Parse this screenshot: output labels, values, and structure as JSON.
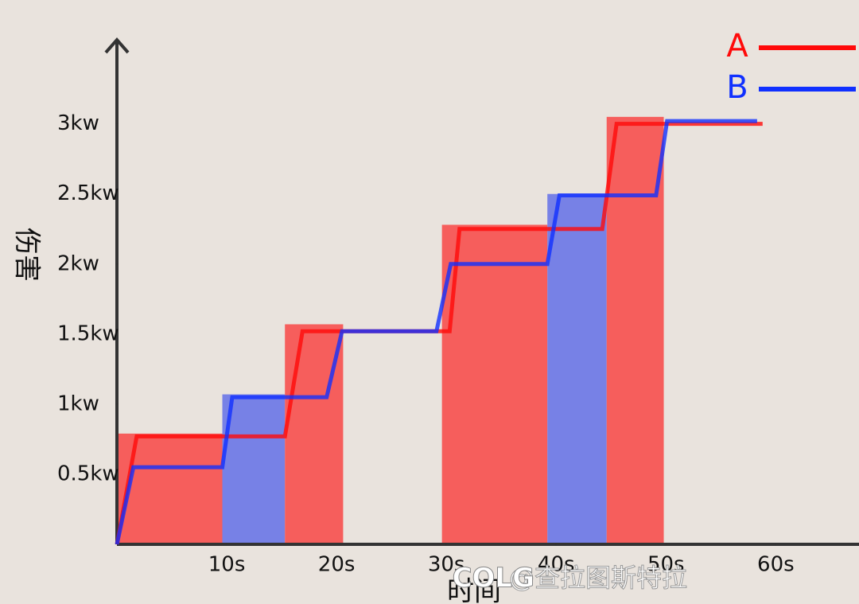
{
  "chart_data": {
    "type": "line",
    "xlabel": "时间",
    "ylabel": "伤害",
    "xlim": [
      0,
      67
    ],
    "ylim": [
      0,
      3.6
    ],
    "xticks": [
      {
        "value": 10,
        "label": "10s"
      },
      {
        "value": 20,
        "label": "20s"
      },
      {
        "value": 30,
        "label": "30s"
      },
      {
        "value": 40,
        "label": "40s"
      },
      {
        "value": 50,
        "label": "50s"
      },
      {
        "value": 60,
        "label": "60s"
      }
    ],
    "yticks": [
      {
        "value": 0.5,
        "label": "0.5kw"
      },
      {
        "value": 1,
        "label": "1kw"
      },
      {
        "value": 1.5,
        "label": "1.5kw"
      },
      {
        "value": 2,
        "label": "2kw"
      },
      {
        "value": 2.5,
        "label": "2.5kw"
      },
      {
        "value": 3,
        "label": "3kw"
      }
    ],
    "regions": [
      {
        "x": [
          0,
          10.9
        ],
        "value": 0.79,
        "color": "#f65e5c"
      },
      {
        "x": [
          9.6,
          15.3
        ],
        "value": 1.07,
        "color": "#7781e6"
      },
      {
        "x": [
          15.3,
          20.6
        ],
        "value": 1.57,
        "color": "#f65e5c"
      },
      {
        "x": [
          29.6,
          39.2
        ],
        "value": 2.28,
        "color": "#f65e5c"
      },
      {
        "x": [
          39.2,
          44.6
        ],
        "value": 2.5,
        "color": "#7781e6"
      },
      {
        "x": [
          44.6,
          49.8
        ],
        "value": 3.05,
        "color": "#f65e5c"
      }
    ],
    "series": [
      {
        "name": "A",
        "color": "#ff0a0a",
        "x": [
          0,
          1.8,
          15.3,
          16.9,
          30.3,
          31.2,
          44.2,
          45.5,
          58.8
        ],
        "values": [
          0,
          0.77,
          0.77,
          1.52,
          1.52,
          2.25,
          2.25,
          3.0,
          3.0
        ]
      },
      {
        "name": "B",
        "color": "#1030ff",
        "x": [
          0,
          1.5,
          9.6,
          10.5,
          19.1,
          20.5,
          29.1,
          30.4,
          39.2,
          40.3,
          49.1,
          50.1,
          58.3
        ],
        "values": [
          0,
          0.55,
          0.55,
          1.05,
          1.05,
          1.52,
          1.52,
          2.0,
          2.0,
          2.49,
          2.49,
          3.02,
          3.02
        ]
      }
    ],
    "legend": "top-right",
    "watermark": "@查拉图斯特拉",
    "logo": "COLG"
  }
}
